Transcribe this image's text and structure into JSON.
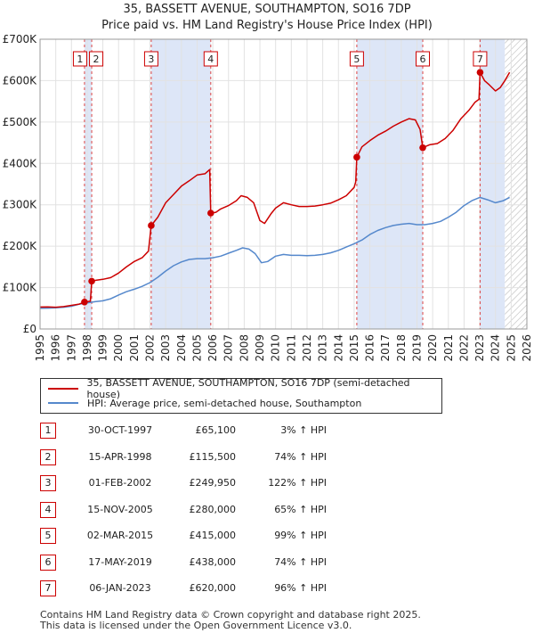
{
  "title": {
    "line1": "35, BASSETT AVENUE, SOUTHAMPTON, SO16 7DP",
    "line2": "Price paid vs. HM Land Registry's House Price Index (HPI)"
  },
  "legend": {
    "property_label": "35, BASSETT AVENUE, SOUTHAMPTON, SO16 7DP (semi-detached house)",
    "hpi_label": "HPI: Average price, semi-detached house, Southampton"
  },
  "colors": {
    "property_line": "#cc0000",
    "hpi_line": "#5588cc",
    "shade": "#dde6f7",
    "marker_border": "#cc0000",
    "dashed": "#dd4444"
  },
  "transactions": [
    {
      "num": "1",
      "date": "30-OCT-1997",
      "price": "£65,100",
      "hpi": "3% ↑ HPI"
    },
    {
      "num": "2",
      "date": "15-APR-1998",
      "price": "£115,500",
      "hpi": "74% ↑ HPI"
    },
    {
      "num": "3",
      "date": "01-FEB-2002",
      "price": "£249,950",
      "hpi": "122% ↑ HPI"
    },
    {
      "num": "4",
      "date": "15-NOV-2005",
      "price": "£280,000",
      "hpi": "65% ↑ HPI"
    },
    {
      "num": "5",
      "date": "02-MAR-2015",
      "price": "£415,000",
      "hpi": "99% ↑ HPI"
    },
    {
      "num": "6",
      "date": "17-MAY-2019",
      "price": "£438,000",
      "hpi": "74% ↑ HPI"
    },
    {
      "num": "7",
      "date": "06-JAN-2023",
      "price": "£620,000",
      "hpi": "96% ↑ HPI"
    }
  ],
  "footer": {
    "line1": "Contains HM Land Registry data © Crown copyright and database right 2025.",
    "line2": "This data is licensed under the Open Government Licence v3.0."
  },
  "chart_data": {
    "type": "line",
    "title": "35, BASSETT AVENUE, SOUTHAMPTON, SO16 7DP — Price paid vs. HM Land Registry's House Price Index (HPI)",
    "xlabel": "",
    "ylabel": "",
    "xlim": [
      1995,
      2026
    ],
    "ylim": [
      0,
      700000
    ],
    "x_ticks": [
      1995,
      1996,
      1997,
      1998,
      1999,
      2000,
      2001,
      2002,
      2003,
      2004,
      2005,
      2006,
      2007,
      2008,
      2009,
      2010,
      2011,
      2012,
      2013,
      2014,
      2015,
      2016,
      2017,
      2018,
      2019,
      2020,
      2021,
      2022,
      2023,
      2024,
      2025,
      2026
    ],
    "y_ticks": [
      {
        "value": 0,
        "label": "£0"
      },
      {
        "value": 100000,
        "label": "£100K"
      },
      {
        "value": 200000,
        "label": "£200K"
      },
      {
        "value": 300000,
        "label": "£300K"
      },
      {
        "value": 400000,
        "label": "£400K"
      },
      {
        "value": 500000,
        "label": "£500K"
      },
      {
        "value": 600000,
        "label": "£600K"
      },
      {
        "value": 700000,
        "label": "£700K"
      }
    ],
    "grid": true,
    "shaded_periods": [
      [
        1997.83,
        1998.29
      ],
      [
        2002.08,
        2005.87
      ],
      [
        2015.17,
        2019.37
      ],
      [
        2023.02,
        2024.6
      ]
    ],
    "hatched_from": 2024.6,
    "sales": [
      {
        "label": "1",
        "x": 1997.83,
        "y": 65100
      },
      {
        "label": "2",
        "x": 1998.29,
        "y": 115500
      },
      {
        "label": "3",
        "x": 2002.08,
        "y": 249950
      },
      {
        "label": "4",
        "x": 2005.87,
        "y": 280000
      },
      {
        "label": "5",
        "x": 2015.17,
        "y": 415000
      },
      {
        "label": "6",
        "x": 2019.37,
        "y": 438000
      },
      {
        "label": "7",
        "x": 2023.02,
        "y": 620000
      }
    ],
    "series": [
      {
        "name": "35, BASSETT AVENUE, SOUTHAMPTON, SO16 7DP (semi-detached house)",
        "color": "#cc0000",
        "points": [
          [
            1995.0,
            53000
          ],
          [
            1995.5,
            53500
          ],
          [
            1996.0,
            52500
          ],
          [
            1996.5,
            54000
          ],
          [
            1997.0,
            57000
          ],
          [
            1997.5,
            60000
          ],
          [
            1997.83,
            65100
          ],
          [
            1998.0,
            66000
          ],
          [
            1998.2,
            67000
          ],
          [
            1998.29,
            115500
          ],
          [
            1998.6,
            118000
          ],
          [
            1999.0,
            120000
          ],
          [
            1999.5,
            124000
          ],
          [
            2000.0,
            135000
          ],
          [
            2000.5,
            150000
          ],
          [
            2001.0,
            163000
          ],
          [
            2001.5,
            172000
          ],
          [
            2001.9,
            188000
          ],
          [
            2002.08,
            249950
          ],
          [
            2002.5,
            270000
          ],
          [
            2003.0,
            305000
          ],
          [
            2003.5,
            325000
          ],
          [
            2004.0,
            345000
          ],
          [
            2004.5,
            358000
          ],
          [
            2005.0,
            372000
          ],
          [
            2005.5,
            375000
          ],
          [
            2005.8,
            385000
          ],
          [
            2005.87,
            280000
          ],
          [
            2006.2,
            282000
          ],
          [
            2006.5,
            290000
          ],
          [
            2007.0,
            298000
          ],
          [
            2007.5,
            310000
          ],
          [
            2007.8,
            322000
          ],
          [
            2008.2,
            318000
          ],
          [
            2008.6,
            305000
          ],
          [
            2009.0,
            262000
          ],
          [
            2009.3,
            255000
          ],
          [
            2009.7,
            278000
          ],
          [
            2010.0,
            292000
          ],
          [
            2010.5,
            305000
          ],
          [
            2011.0,
            300000
          ],
          [
            2011.5,
            296000
          ],
          [
            2012.0,
            296000
          ],
          [
            2012.5,
            297000
          ],
          [
            2013.0,
            300000
          ],
          [
            2013.5,
            304000
          ],
          [
            2014.0,
            312000
          ],
          [
            2014.5,
            322000
          ],
          [
            2015.0,
            342000
          ],
          [
            2015.1,
            355000
          ],
          [
            2015.17,
            415000
          ],
          [
            2015.5,
            440000
          ],
          [
            2016.0,
            455000
          ],
          [
            2016.5,
            468000
          ],
          [
            2017.0,
            478000
          ],
          [
            2017.5,
            490000
          ],
          [
            2018.0,
            500000
          ],
          [
            2018.5,
            508000
          ],
          [
            2018.9,
            505000
          ],
          [
            2019.2,
            482000
          ],
          [
            2019.37,
            438000
          ],
          [
            2019.8,
            445000
          ],
          [
            2020.3,
            448000
          ],
          [
            2020.8,
            460000
          ],
          [
            2021.3,
            480000
          ],
          [
            2021.8,
            508000
          ],
          [
            2022.3,
            528000
          ],
          [
            2022.7,
            548000
          ],
          [
            2022.95,
            555000
          ],
          [
            2023.02,
            620000
          ],
          [
            2023.3,
            600000
          ],
          [
            2023.6,
            590000
          ],
          [
            2024.0,
            575000
          ],
          [
            2024.3,
            583000
          ],
          [
            2024.6,
            600000
          ],
          [
            2024.9,
            620000
          ]
        ]
      },
      {
        "name": "HPI: Average price, semi-detached house, Southampton",
        "color": "#5588cc",
        "points": [
          [
            1995.0,
            50000
          ],
          [
            1995.5,
            50500
          ],
          [
            1996.0,
            51000
          ],
          [
            1996.5,
            52500
          ],
          [
            1997.0,
            55000
          ],
          [
            1997.5,
            60000
          ],
          [
            1998.0,
            63000
          ],
          [
            1998.5,
            66000
          ],
          [
            1999.0,
            68000
          ],
          [
            1999.5,
            73000
          ],
          [
            2000.0,
            82000
          ],
          [
            2000.5,
            90000
          ],
          [
            2001.0,
            96000
          ],
          [
            2001.5,
            103000
          ],
          [
            2002.0,
            112000
          ],
          [
            2002.5,
            125000
          ],
          [
            2003.0,
            140000
          ],
          [
            2003.5,
            153000
          ],
          [
            2004.0,
            162000
          ],
          [
            2004.5,
            168000
          ],
          [
            2005.0,
            170000
          ],
          [
            2005.5,
            170000
          ],
          [
            2006.0,
            172000
          ],
          [
            2006.5,
            176000
          ],
          [
            2007.0,
            183000
          ],
          [
            2007.5,
            190000
          ],
          [
            2007.9,
            196000
          ],
          [
            2008.3,
            193000
          ],
          [
            2008.7,
            182000
          ],
          [
            2009.1,
            160000
          ],
          [
            2009.5,
            163000
          ],
          [
            2010.0,
            176000
          ],
          [
            2010.5,
            180000
          ],
          [
            2011.0,
            178000
          ],
          [
            2011.5,
            178000
          ],
          [
            2012.0,
            177000
          ],
          [
            2012.5,
            178000
          ],
          [
            2013.0,
            180000
          ],
          [
            2013.5,
            184000
          ],
          [
            2014.0,
            190000
          ],
          [
            2014.5,
            198000
          ],
          [
            2015.0,
            206000
          ],
          [
            2015.5,
            215000
          ],
          [
            2016.0,
            228000
          ],
          [
            2016.5,
            238000
          ],
          [
            2017.0,
            245000
          ],
          [
            2017.5,
            250000
          ],
          [
            2018.0,
            253000
          ],
          [
            2018.5,
            255000
          ],
          [
            2019.0,
            252000
          ],
          [
            2019.5,
            252000
          ],
          [
            2020.0,
            255000
          ],
          [
            2020.5,
            260000
          ],
          [
            2021.0,
            270000
          ],
          [
            2021.5,
            282000
          ],
          [
            2022.0,
            298000
          ],
          [
            2022.5,
            310000
          ],
          [
            2023.0,
            318000
          ],
          [
            2023.5,
            312000
          ],
          [
            2024.0,
            305000
          ],
          [
            2024.5,
            310000
          ],
          [
            2024.9,
            318000
          ]
        ]
      }
    ]
  }
}
